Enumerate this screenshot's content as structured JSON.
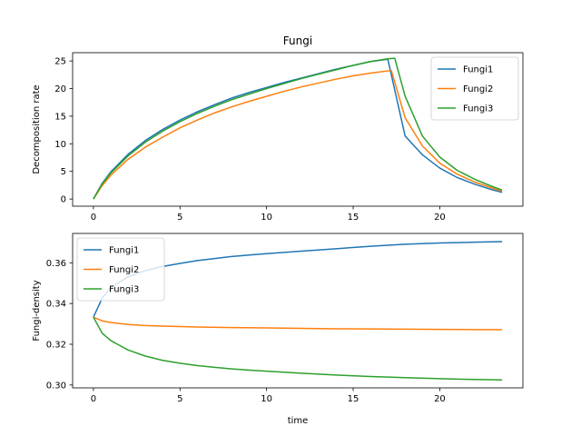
{
  "chart_data": [
    {
      "type": "line",
      "title": "Fungi",
      "xlabel": "",
      "ylabel": "Decomposition rate",
      "xlim": [
        -1.2,
        24.8
      ],
      "ylim": [
        -1.3,
        26.5
      ],
      "xticks": [
        0,
        5,
        10,
        15,
        20
      ],
      "yticks": [
        0,
        5,
        10,
        15,
        20,
        25
      ],
      "legend": "top-right",
      "series": [
        {
          "name": "Fungi1",
          "color": "#1f77b4",
          "x": [
            0,
            0.5,
            1,
            2,
            3,
            4,
            5,
            6,
            7,
            8,
            9,
            10,
            11,
            12,
            13,
            14,
            15,
            16,
            17,
            18,
            19,
            20,
            21,
            22,
            23,
            23.6
          ],
          "y": [
            0,
            2.8,
            4.9,
            8.1,
            10.6,
            12.6,
            14.3,
            15.8,
            17.1,
            18.3,
            19.3,
            20.2,
            21.1,
            21.9,
            22.7,
            23.5,
            24.2,
            24.9,
            25.3,
            11.4,
            8.0,
            5.6,
            3.9,
            2.7,
            1.7,
            1.2
          ]
        },
        {
          "name": "Fungi2",
          "color": "#ff7f0e",
          "x": [
            0,
            0.5,
            1,
            2,
            3,
            4,
            5,
            6,
            7,
            8,
            9,
            10,
            11,
            12,
            13,
            14,
            15,
            16,
            17,
            17.2,
            18,
            19,
            20,
            21,
            22,
            23,
            23.6
          ],
          "y": [
            0,
            2.4,
            4.3,
            7.2,
            9.4,
            11.2,
            12.9,
            14.3,
            15.6,
            16.7,
            17.7,
            18.6,
            19.5,
            20.3,
            21.0,
            21.7,
            22.3,
            22.8,
            23.2,
            23.3,
            14.7,
            9.6,
            6.5,
            4.5,
            3.1,
            2.0,
            1.4
          ]
        },
        {
          "name": "Fungi3",
          "color": "#2ca02c",
          "x": [
            0,
            0.5,
            1,
            2,
            3,
            4,
            5,
            6,
            7,
            8,
            9,
            10,
            11,
            12,
            13,
            14,
            15,
            16,
            17,
            17.4,
            18,
            19,
            20,
            21,
            22,
            23,
            23.6
          ],
          "y": [
            0,
            2.7,
            4.7,
            7.8,
            10.3,
            12.3,
            14.0,
            15.5,
            16.8,
            18.0,
            19.0,
            20.0,
            20.9,
            21.8,
            22.6,
            23.4,
            24.2,
            24.9,
            25.4,
            25.5,
            18.6,
            11.4,
            7.6,
            5.2,
            3.6,
            2.3,
            1.6
          ]
        }
      ]
    },
    {
      "type": "line",
      "title": "",
      "xlabel": "time",
      "ylabel": "Fungi-density",
      "xlim": [
        -1.2,
        24.8
      ],
      "ylim": [
        0.2986,
        0.3744
      ],
      "xticks": [
        0,
        5,
        10,
        15,
        20
      ],
      "yticks": [
        0.3,
        0.32,
        0.34,
        0.36
      ],
      "ytick_labels": [
        "0.30",
        "0.32",
        "0.34",
        "0.36"
      ],
      "legend": "top-left",
      "series": [
        {
          "name": "Fungi1",
          "color": "#1f77b4",
          "x": [
            0,
            0.5,
            1,
            2,
            3,
            4,
            5,
            6,
            7,
            8,
            9,
            10,
            12,
            14,
            16,
            18,
            20,
            22,
            23.6
          ],
          "y": [
            0.3333,
            0.3425,
            0.3478,
            0.3531,
            0.3561,
            0.3582,
            0.3597,
            0.3611,
            0.3621,
            0.3631,
            0.3638,
            0.3645,
            0.3657,
            0.3669,
            0.3681,
            0.3691,
            0.3697,
            0.3701,
            0.3704
          ]
        },
        {
          "name": "Fungi2",
          "color": "#ff7f0e",
          "x": [
            0,
            0.5,
            1,
            2,
            3,
            4,
            5,
            6,
            8,
            10,
            12,
            14,
            16,
            18,
            20,
            22,
            23.6
          ],
          "y": [
            0.3333,
            0.3315,
            0.3307,
            0.3297,
            0.3292,
            0.3289,
            0.3287,
            0.3285,
            0.3282,
            0.328,
            0.3278,
            0.3276,
            0.3275,
            0.3274,
            0.3273,
            0.3272,
            0.3272
          ]
        },
        {
          "name": "Fungi3",
          "color": "#2ca02c",
          "x": [
            0,
            0.5,
            1,
            2,
            3,
            4,
            5,
            6,
            7,
            8,
            9,
            10,
            12,
            14,
            16,
            18,
            20,
            22,
            23.6
          ],
          "y": [
            0.3333,
            0.3255,
            0.3218,
            0.3172,
            0.3142,
            0.3121,
            0.3107,
            0.3095,
            0.3087,
            0.3079,
            0.3073,
            0.3068,
            0.3058,
            0.3049,
            0.3042,
            0.3036,
            0.3031,
            0.3027,
            0.3025
          ]
        }
      ]
    }
  ]
}
